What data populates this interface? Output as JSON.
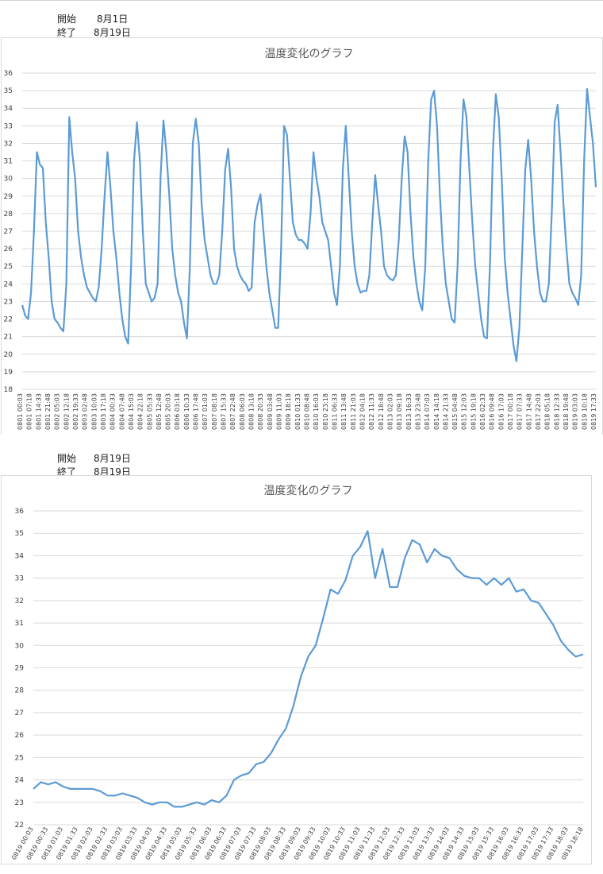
{
  "header1": {
    "start_label": "開始",
    "start_value": "8月1日",
    "end_label": "終了",
    "end_value": "8月19日"
  },
  "header2": {
    "start_label": "開始",
    "start_value": "8月19日",
    "end_label": "終了",
    "end_value": "8月19日"
  },
  "chart_data": [
    {
      "type": "line",
      "title": "温度変化のグラフ",
      "ylim": [
        18,
        36
      ],
      "yticks": [
        18,
        19,
        20,
        21,
        22,
        23,
        24,
        25,
        26,
        27,
        28,
        29,
        30,
        31,
        32,
        33,
        34,
        35,
        36
      ],
      "grid": true,
      "series": [
        {
          "color": "#5b9bd5",
          "values": [
            22.8,
            22.2,
            22.0,
            23.5,
            27.0,
            31.5,
            30.8,
            30.6,
            27.5,
            25.5,
            23.0,
            22.0,
            21.8,
            21.5,
            21.3,
            24.0,
            33.5,
            31.5,
            30.0,
            27.0,
            25.5,
            24.5,
            23.8,
            23.5,
            23.2,
            23.0,
            23.8,
            26.0,
            29.0,
            31.5,
            29.5,
            27.0,
            25.5,
            23.5,
            22.0,
            21.0,
            20.6,
            25.0,
            31.0,
            33.2,
            31.0,
            27.0,
            24.0,
            23.5,
            23.0,
            23.2,
            24.0,
            30.0,
            33.3,
            31.5,
            29.0,
            26.0,
            24.5,
            23.5,
            23.0,
            21.8,
            20.9,
            25.0,
            32.0,
            33.4,
            32.0,
            28.5,
            26.5,
            25.5,
            24.5,
            24.0,
            24.0,
            24.5,
            27.0,
            30.5,
            31.7,
            29.5,
            26.0,
            25.0,
            24.5,
            24.2,
            24.0,
            23.6,
            23.8,
            27.5,
            28.5,
            29.1,
            27.0,
            25.0,
            23.5,
            22.5,
            21.5,
            21.5,
            26.0,
            33.0,
            32.5,
            30.0,
            27.5,
            26.8,
            26.5,
            26.5,
            26.3,
            26.0,
            28.0,
            31.5,
            30.0,
            29.0,
            27.5,
            27.0,
            26.5,
            25.0,
            23.5,
            22.8,
            25.0,
            30.5,
            33.0,
            30.0,
            27.0,
            25.0,
            24.0,
            23.5,
            23.6,
            23.6,
            24.5,
            27.5,
            30.2,
            28.5,
            27.0,
            25.0,
            24.5,
            24.3,
            24.2,
            24.5,
            26.5,
            30.0,
            32.4,
            31.5,
            28.0,
            25.5,
            24.0,
            23.0,
            22.5,
            25.0,
            31.0,
            34.5,
            35.0,
            33.0,
            29.0,
            26.0,
            24.0,
            23.0,
            22.0,
            21.8,
            25.0,
            31.0,
            34.5,
            33.5,
            30.5,
            27.5,
            25.0,
            23.5,
            22.0,
            21.0,
            20.9,
            25.0,
            31.5,
            34.8,
            33.5,
            30.0,
            25.5,
            23.5,
            22.0,
            20.5,
            19.6,
            21.5,
            26.0,
            30.5,
            32.2,
            30.0,
            27.0,
            25.0,
            23.5,
            23.0,
            23.0,
            24.0,
            28.0,
            33.2,
            34.2,
            31.5,
            28.5,
            26.0,
            24.0,
            23.5,
            23.2,
            22.8,
            24.5,
            31.0,
            35.1,
            33.5,
            32.0,
            29.5
          ]
        }
      ],
      "xticks": [
        "0801 00:03",
        "0801 07:18",
        "0801 14:33",
        "0801 21:48",
        "0802 05:03",
        "0802 12:18",
        "0802 19:33",
        "0803 02:48",
        "0803 10:03",
        "0803 17:18",
        "0804 00:33",
        "0804 07:48",
        "0804 15:03",
        "0804 22:18",
        "0805 05:33",
        "0805 12:48",
        "0805 20:03",
        "0806 03:18",
        "0806 10:33",
        "0806 17:48",
        "0807 01:03",
        "0807 08:18",
        "0807 15:33",
        "0807 22:48",
        "0808 06:03",
        "0808 13:18",
        "0808 20:33",
        "0809 03:48",
        "0809 11:03",
        "0809 18:18",
        "0810 01:33",
        "0810 08:48",
        "0810 16:03",
        "0810 23:18",
        "0811 06:33",
        "0811 13:48",
        "0811 21:03",
        "0812 04:18",
        "0812 11:33",
        "0812 18:48",
        "0813 02:03",
        "0813 09:18",
        "0813 16:33",
        "0813 23:48",
        "0814 07:03",
        "0814 14:18",
        "0814 21:33",
        "0815 04:48",
        "0815 12:03",
        "0815 19:18",
        "0816 02:33",
        "0816 09:48",
        "0816 17:03",
        "0817 00:18",
        "0817 07:33",
        "0817 14:48",
        "0817 22:03",
        "0818 05:18",
        "0818 12:33",
        "0818 19:48",
        "0819 03:03",
        "0819 10:18",
        "0819 17:33"
      ]
    },
    {
      "type": "line",
      "title": "温度変化のグラフ",
      "ylim": [
        22,
        36
      ],
      "yticks": [
        22,
        23,
        24,
        25,
        26,
        27,
        28,
        29,
        30,
        31,
        32,
        33,
        34,
        35,
        36
      ],
      "grid": true,
      "series": [
        {
          "color": "#5b9bd5",
          "values": [
            23.6,
            23.9,
            23.8,
            23.9,
            23.7,
            23.6,
            23.6,
            23.6,
            23.6,
            23.5,
            23.3,
            23.3,
            23.4,
            23.3,
            23.2,
            23.0,
            22.9,
            23.0,
            23.0,
            22.8,
            22.8,
            22.9,
            23.0,
            22.9,
            23.1,
            23.0,
            23.3,
            24.0,
            24.2,
            24.3,
            24.7,
            24.8,
            25.2,
            25.8,
            26.3,
            27.3,
            28.6,
            29.5,
            30.0,
            31.2,
            32.5,
            32.3,
            32.9,
            34.0,
            34.4,
            35.1,
            33.0,
            34.3,
            32.6,
            32.6,
            33.9,
            34.7,
            34.5,
            33.7,
            34.3,
            34.0,
            33.9,
            33.4,
            33.1,
            33.0,
            33.0,
            32.7,
            33.0,
            32.7,
            33.0,
            32.4,
            32.5,
            32.0,
            31.9,
            31.4,
            30.9,
            30.2,
            29.8,
            29.5,
            29.6
          ]
        }
      ],
      "xticks": [
        "0819 00:03",
        "0819 00:33",
        "0819 01:03",
        "0819 01:33",
        "0819 02:03",
        "0819 02:33",
        "0819 03:03",
        "0819 03:33",
        "0819 04:03",
        "0819 04:33",
        "0819 05:03",
        "0819 05:33",
        "0819 06:03",
        "0819 06:33",
        "0819 07:03",
        "0819 07:33",
        "0819 08:03",
        "0819 08:33",
        "0819 09:03",
        "0819 09:33",
        "0819 10:03",
        "0819 10:33",
        "0819 11:03",
        "0819 11:33",
        "0819 12:03",
        "0819 12:33",
        "0819 13:03",
        "0819 13:33",
        "0819 14:03",
        "0819 14:33",
        "0819 15:03",
        "0819 15:33",
        "0819 16:03",
        "0819 16:33",
        "0819 17:03",
        "0819 17:33",
        "0819 18:03",
        "0819 18:18"
      ]
    }
  ]
}
